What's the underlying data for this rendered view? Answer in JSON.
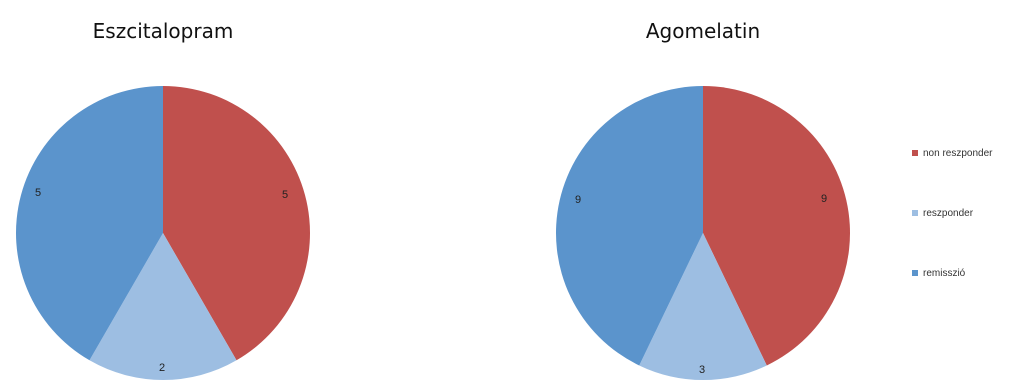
{
  "chart_data": [
    {
      "type": "pie",
      "title": "Eszcitalopram",
      "categories": [
        "non reszponder",
        "reszponder",
        "remisszió"
      ],
      "values": [
        5,
        2,
        5
      ],
      "colors": [
        "#C0504D",
        "#9DBEE2",
        "#5B94CC"
      ],
      "value_labels": [
        "5",
        "2",
        "5"
      ]
    },
    {
      "type": "pie",
      "title": "Agomelatin",
      "categories": [
        "non reszponder",
        "reszponder",
        "remisszió"
      ],
      "values": [
        9,
        3,
        9
      ],
      "colors": [
        "#C0504D",
        "#9DBEE2",
        "#5B94CC"
      ],
      "value_labels": [
        "9",
        "3",
        "9"
      ]
    }
  ],
  "legend": {
    "placement": "right",
    "items": [
      {
        "label": "non reszponder",
        "color": "#C0504D"
      },
      {
        "label": "reszponder",
        "color": "#9DBEE2"
      },
      {
        "label": "remisszió",
        "color": "#5B94CC"
      }
    ]
  }
}
